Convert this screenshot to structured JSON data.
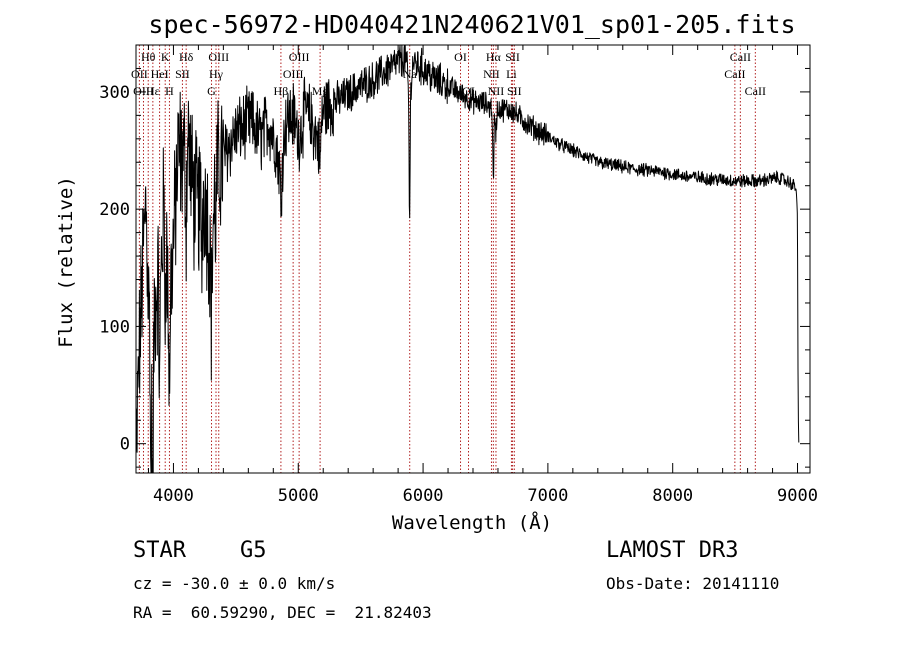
{
  "chart_data": {
    "type": "line",
    "title": "spec-56972-HD040421N240621V01_sp01-205.fits",
    "xlabel": "Wavelength (Å)",
    "ylabel": "Flux (relative)",
    "xlim": [
      3700,
      9100
    ],
    "ylim": [
      -25,
      340
    ],
    "x_ticks": [
      "4000",
      "5000",
      "6000",
      "7000",
      "8000",
      "9000"
    ],
    "y_ticks": [
      "0",
      "100",
      "200",
      "300"
    ],
    "series": [
      {
        "name": "flux",
        "anchors": [
          [
            3700,
            -20
          ],
          [
            3720,
            60
          ],
          [
            3750,
            140
          ],
          [
            3780,
            210
          ],
          [
            3800,
            120
          ],
          [
            3830,
            90
          ],
          [
            3860,
            130
          ],
          [
            3900,
            150
          ],
          [
            3930,
            220
          ],
          [
            3960,
            110
          ],
          [
            4000,
            170
          ],
          [
            4040,
            250
          ],
          [
            4080,
            240
          ],
          [
            4120,
            260
          ],
          [
            4160,
            210
          ],
          [
            4200,
            200
          ],
          [
            4250,
            215
          ],
          [
            4300,
            160
          ],
          [
            4340,
            225
          ],
          [
            4380,
            240
          ],
          [
            4450,
            255
          ],
          [
            4500,
            265
          ],
          [
            4560,
            270
          ],
          [
            4620,
            275
          ],
          [
            4700,
            260
          ],
          [
            4760,
            275
          ],
          [
            4820,
            255
          ],
          [
            4861,
            230
          ],
          [
            4900,
            275
          ],
          [
            4960,
            280
          ],
          [
            5000,
            260
          ],
          [
            5060,
            285
          ],
          [
            5120,
            270
          ],
          [
            5167,
            255
          ],
          [
            5200,
            285
          ],
          [
            5300,
            292
          ],
          [
            5400,
            298
          ],
          [
            5500,
            305
          ],
          [
            5600,
            310
          ],
          [
            5700,
            318
          ],
          [
            5800,
            325
          ],
          [
            5860,
            330
          ],
          [
            5890,
            300
          ],
          [
            5920,
            325
          ],
          [
            6000,
            320
          ],
          [
            6100,
            310
          ],
          [
            6200,
            305
          ],
          [
            6300,
            298
          ],
          [
            6400,
            292
          ],
          [
            6500,
            290
          ],
          [
            6563,
            285
          ],
          [
            6600,
            285
          ],
          [
            6700,
            285
          ],
          [
            6800,
            276
          ],
          [
            6900,
            268
          ],
          [
            7000,
            262
          ],
          [
            7100,
            255
          ],
          [
            7200,
            250
          ],
          [
            7300,
            245
          ],
          [
            7400,
            240
          ],
          [
            7500,
            238
          ],
          [
            7700,
            234
          ],
          [
            7900,
            232
          ],
          [
            8100,
            228
          ],
          [
            8300,
            226
          ],
          [
            8500,
            224
          ],
          [
            8700,
            224
          ],
          [
            8850,
            227
          ],
          [
            8950,
            222
          ],
          [
            8990,
            218
          ],
          [
            9000,
            190
          ],
          [
            9005,
            30
          ],
          [
            9010,
            0
          ]
        ],
        "absorption_dips": [
          {
            "center": 3820,
            "depth": 160
          },
          {
            "center": 3835,
            "depth": 150
          },
          {
            "center": 3889,
            "depth": 100
          },
          {
            "center": 3933,
            "depth": 90
          },
          {
            "center": 3968,
            "depth": 70
          },
          {
            "center": 4101,
            "depth": 60
          },
          {
            "center": 4227,
            "depth": 40
          },
          {
            "center": 4305,
            "depth": 60
          },
          {
            "center": 4340,
            "depth": 40
          },
          {
            "center": 4861,
            "depth": 30
          },
          {
            "center": 5175,
            "depth": 25
          },
          {
            "center": 5892,
            "depth": 110
          },
          {
            "center": 6563,
            "depth": 65
          },
          {
            "center": 6583,
            "depth": 20
          }
        ]
      }
    ],
    "line_markers": [
      {
        "label": "Hθ",
        "wavelength": 3798,
        "row": 0
      },
      {
        "label": "K",
        "wavelength": 3934,
        "row": 0
      },
      {
        "label": "Hδ",
        "wavelength": 4102,
        "row": 0
      },
      {
        "label": "OIII",
        "wavelength": 4363,
        "row": 0
      },
      {
        "label": "OIII",
        "wavelength": 5007,
        "row": 0
      },
      {
        "label": "OI",
        "wavelength": 6300,
        "row": 0
      },
      {
        "label": "Hα",
        "wavelength": 6563,
        "row": 0
      },
      {
        "label": "SII",
        "wavelength": 6717,
        "row": 0
      },
      {
        "label": "CaII",
        "wavelength": 8542,
        "row": 0
      },
      {
        "label": "OII",
        "wavelength": 3727,
        "row": 1
      },
      {
        "label": "HeI",
        "wavelength": 3889,
        "row": 1
      },
      {
        "label": "SII",
        "wavelength": 4072,
        "row": 1
      },
      {
        "label": "Hγ",
        "wavelength": 4341,
        "row": 1
      },
      {
        "label": "OIII",
        "wavelength": 4959,
        "row": 1
      },
      {
        "label": "Na",
        "wavelength": 5893,
        "row": 1
      },
      {
        "label": "NII",
        "wavelength": 6548,
        "row": 1
      },
      {
        "label": "Li",
        "wavelength": 6708,
        "row": 1
      },
      {
        "label": "CaII",
        "wavelength": 8498,
        "row": 1
      },
      {
        "label": "OIII",
        "wavelength": 3760,
        "row": 2
      },
      {
        "label": "Hε",
        "wavelength": 3835,
        "row": 2
      },
      {
        "label": "H",
        "wavelength": 3968,
        "row": 2
      },
      {
        "label": "G",
        "wavelength": 4305,
        "row": 2
      },
      {
        "label": "Hβ",
        "wavelength": 4861,
        "row": 2
      },
      {
        "label": "Mg",
        "wavelength": 5175,
        "row": 2
      },
      {
        "label": "OI",
        "wavelength": 6364,
        "row": 2
      },
      {
        "label": "NII",
        "wavelength": 6584,
        "row": 2
      },
      {
        "label": "SII",
        "wavelength": 6731,
        "row": 2
      },
      {
        "label": "CaII",
        "wavelength": 8662,
        "row": 2
      }
    ],
    "colors": {
      "spectrum": "#000000",
      "marker_line": "#b22222",
      "axes": "#000000",
      "background": "#ffffff"
    }
  },
  "info": {
    "object_class": "STAR",
    "subclass": "G5",
    "survey": "LAMOST DR3",
    "redshift": "cz = -30.0 ± 0.0 km/s",
    "obs_date": "Obs-Date: 20141110",
    "coords": "RA =  60.59290, DEC =  21.82403"
  }
}
